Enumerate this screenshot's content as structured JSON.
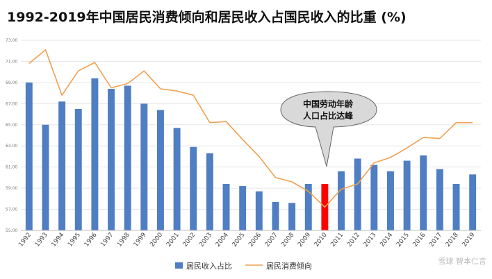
{
  "chart_data": {
    "type": "bar",
    "title": "1992-2019年中国居民消费倾向和居民收入占国民收入的比重 (%)",
    "categories": [
      "1992",
      "1993",
      "1994",
      "1995",
      "1996",
      "1997",
      "1998",
      "1999",
      "2000",
      "2001",
      "2002",
      "2003",
      "2004",
      "2005",
      "2006",
      "2007",
      "2008",
      "2009",
      "2010",
      "2011",
      "2012",
      "2013",
      "2014",
      "2015",
      "2016",
      "2017",
      "2018",
      "2019"
    ],
    "ylim": [
      55,
      73
    ],
    "yticks": [
      "55.00",
      "57.00",
      "59.00",
      "61.00",
      "63.00",
      "65.00",
      "67.00",
      "69.00",
      "71.00",
      "73.00"
    ],
    "grid": true,
    "legend_position": "bottom",
    "highlight_category": "2010",
    "series": [
      {
        "name": "居民收入占比",
        "type": "bar",
        "color": "#4F7EC2",
        "highlight_color": "#FF0000",
        "values": [
          69.0,
          65.0,
          67.2,
          66.5,
          69.4,
          68.4,
          68.7,
          67.0,
          66.4,
          64.7,
          62.9,
          62.3,
          59.4,
          59.2,
          58.7,
          57.7,
          57.6,
          59.4,
          59.4,
          60.6,
          61.8,
          61.2,
          60.6,
          61.6,
          62.1,
          60.8,
          59.4,
          60.3
        ]
      },
      {
        "name": "居民消费倾向",
        "type": "line",
        "color": "#F0A050",
        "values": [
          70.8,
          72.1,
          67.8,
          70.1,
          70.9,
          68.5,
          68.9,
          70.1,
          68.4,
          68.2,
          67.8,
          65.2,
          65.3,
          63.6,
          62.0,
          60.0,
          59.6,
          58.7,
          57.2,
          58.9,
          59.4,
          61.4,
          61.9,
          62.8,
          63.8,
          63.7,
          65.2,
          65.2
        ]
      }
    ],
    "annotations": [
      {
        "target": "2010",
        "lines": [
          "中国劳动年龄",
          "人口占比达峰"
        ]
      }
    ]
  },
  "watermark": "雪球 智本仁言"
}
